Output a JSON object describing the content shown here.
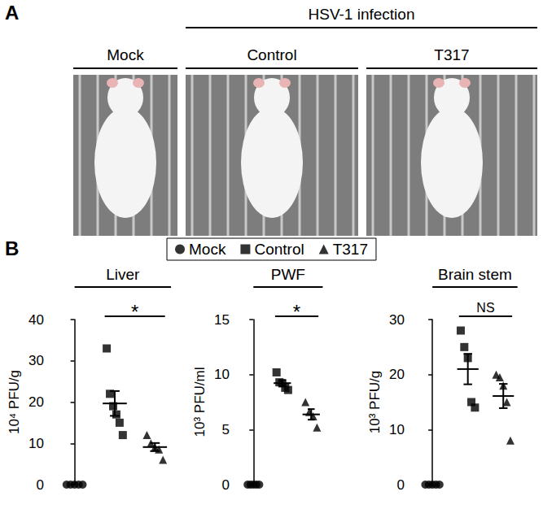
{
  "panel_a": {
    "label": "A",
    "group_label": "HSV-1 infection",
    "columns": [
      "Mock",
      "Control",
      "T317"
    ]
  },
  "panel_b_label": "B",
  "chart_data": [
    {
      "type": "scatter",
      "title": "Liver",
      "y_label": "10⁴ PFU/g",
      "ylim": [
        0,
        40
      ],
      "yticks": [
        0,
        10,
        20,
        30,
        40
      ],
      "tick_labels": "y",
      "legend": "top",
      "series": [
        {
          "name": "Mock",
          "marker": "circle",
          "color": "#000000",
          "values": [
            0,
            0,
            0,
            0,
            0
          ]
        },
        {
          "name": "Control",
          "marker": "square",
          "color": "#000000",
          "values": [
            33,
            22,
            19,
            17,
            15,
            12
          ],
          "mean": 19.67,
          "sem": 3.01
        },
        {
          "name": "T317",
          "marker": "triangle",
          "color": "#000000",
          "values": [
            12,
            10,
            9,
            8.5,
            6
          ],
          "mean": 9.1,
          "sem": 0.98
        }
      ],
      "comparison": {
        "groups": [
          "Control",
          "T317"
        ],
        "label": "*"
      }
    },
    {
      "type": "scatter",
      "title": "PWF",
      "y_label": "10³ PFU/ml",
      "ylim": [
        0,
        15
      ],
      "yticks": [
        0,
        5,
        10,
        15
      ],
      "tick_labels": "y",
      "series": [
        {
          "name": "Mock",
          "marker": "circle",
          "color": "#000000",
          "values": [
            0,
            0,
            0,
            0,
            0
          ]
        },
        {
          "name": "Control",
          "marker": "square",
          "color": "#000000",
          "values": [
            10.2,
            9.3,
            9.2,
            8.8,
            8.6
          ],
          "mean": 9.22,
          "sem": 0.28
        },
        {
          "name": "T317",
          "marker": "triangle",
          "color": "#000000",
          "values": [
            7.5,
            6.6,
            6.2,
            5.2
          ],
          "mean": 6.38,
          "sem": 0.48
        }
      ],
      "comparison": {
        "groups": [
          "Control",
          "T317"
        ],
        "label": "*"
      }
    },
    {
      "type": "scatter",
      "title": "Brain stem",
      "y_label": "10³ PFU/g",
      "ylim": [
        0,
        30
      ],
      "yticks": [
        0,
        10,
        20,
        30
      ],
      "tick_labels": "y",
      "series": [
        {
          "name": "Mock",
          "marker": "circle",
          "color": "#000000",
          "values": [
            0,
            0,
            0,
            0,
            0
          ]
        },
        {
          "name": "Control",
          "marker": "square",
          "color": "#000000",
          "values": [
            28,
            25,
            23,
            15,
            14
          ],
          "mean": 21,
          "sem": 2.77
        },
        {
          "name": "T317",
          "marker": "triangle",
          "color": "#000000",
          "values": [
            20,
            19.5,
            18,
            15,
            8
          ],
          "mean": 16.1,
          "sem": 2.2
        }
      ],
      "comparison": {
        "groups": [
          "Control",
          "T317"
        ],
        "label": "NS"
      }
    }
  ]
}
